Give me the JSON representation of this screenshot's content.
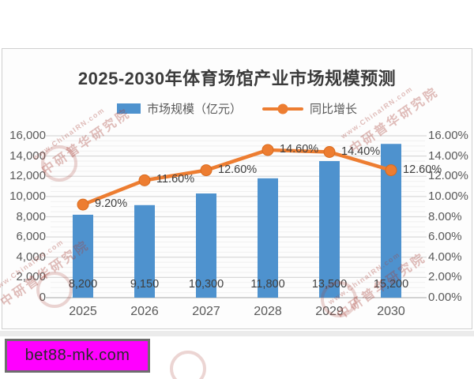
{
  "page": {
    "badge": {
      "text": "bet88-mk.com",
      "bg_color": "#FF00FF",
      "border_color": "#6E6E6E",
      "text_color": "#2A2A2A"
    },
    "watermark": {
      "url_text": "www.ChinaIRN.com",
      "cn_text": "中研普华研究院",
      "color": "#A84038"
    }
  },
  "chart_data": {
    "type": "bar",
    "combo": "bar + line (secondary percent axis)",
    "title": "2025-2030年体育场馆产业市场规模预测",
    "categories": [
      "2025",
      "2026",
      "2027",
      "2028",
      "2029",
      "2030"
    ],
    "series": [
      {
        "name": "市场规模（亿元）",
        "type": "bar",
        "axis": "left",
        "color": "#4E92CE",
        "values": [
          8200,
          9150,
          10300,
          11800,
          13500,
          15200
        ],
        "labels": [
          "8,200",
          "9,150",
          "10,300",
          "11,800",
          "13,500",
          "15,200"
        ]
      },
      {
        "name": "同比增长",
        "type": "line",
        "axis": "right",
        "color": "#ED7D31",
        "marker_edge_color": "#D96B1E",
        "values": [
          9.2,
          11.6,
          12.6,
          14.6,
          14.4,
          12.6
        ],
        "labels": [
          "9.20%",
          "11.60%",
          "12.60%",
          "14.60%",
          "14.40%",
          "12.60%"
        ]
      }
    ],
    "left_axis": {
      "min": 0,
      "max": 16000,
      "step": 2000,
      "minor_step": 500,
      "tick_labels": [
        "0",
        "2,000",
        "4,000",
        "6,000",
        "8,000",
        "10,000",
        "12,000",
        "14,000",
        "16,000"
      ]
    },
    "right_axis": {
      "min": 0,
      "max": 16,
      "step": 2,
      "tick_labels": [
        "0.00%",
        "2.00%",
        "4.00%",
        "6.00%",
        "8.00%",
        "10.00%",
        "12.00%",
        "14.00%",
        "16.00%"
      ]
    },
    "grid": "horizontal major + minor gridlines",
    "legend_position": "top-center"
  }
}
